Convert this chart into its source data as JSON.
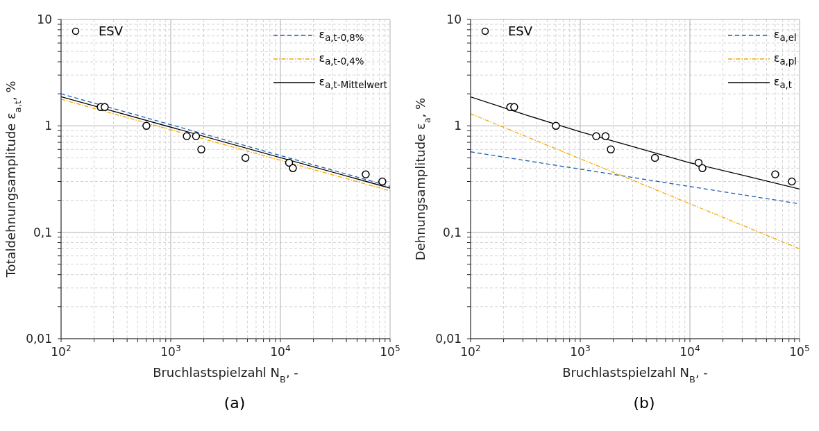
{
  "chart_data": [
    {
      "type": "line",
      "xlabel": "Bruchlastspielzahl N$_{B}$, -",
      "ylabel": "Totaldehnungsamplitude ε$_{a,t}$, %",
      "annotations": [
        "(a)"
      ],
      "log": "xy",
      "grid": true,
      "legend": "top right",
      "xlim": [
        100,
        100000
      ],
      "ylim": [
        0.01,
        10
      ],
      "xticks": [
        {
          "value": 100,
          "label": "10$^{2}$"
        },
        {
          "value": 200,
          "label": null
        },
        {
          "value": 300,
          "label": null
        },
        {
          "value": 400,
          "label": null
        },
        {
          "value": 500,
          "label": null
        },
        {
          "value": 600,
          "label": null
        },
        {
          "value": 700,
          "label": null
        },
        {
          "value": 800,
          "label": null
        },
        {
          "value": 900,
          "label": null
        },
        {
          "value": 1000,
          "label": "10$^{3}$"
        },
        {
          "value": 2000,
          "label": null
        },
        {
          "value": 3000,
          "label": null
        },
        {
          "value": 4000,
          "label": null
        },
        {
          "value": 5000,
          "label": null
        },
        {
          "value": 6000,
          "label": null
        },
        {
          "value": 7000,
          "label": null
        },
        {
          "value": 8000,
          "label": null
        },
        {
          "value": 9000,
          "label": null
        },
        {
          "value": 10000,
          "label": "10$^{4}$"
        },
        {
          "value": 20000,
          "label": null
        },
        {
          "value": 30000,
          "label": null
        },
        {
          "value": 40000,
          "label": null
        },
        {
          "value": 50000,
          "label": null
        },
        {
          "value": 60000,
          "label": null
        },
        {
          "value": 70000,
          "label": null
        },
        {
          "value": 80000,
          "label": null
        },
        {
          "value": 90000,
          "label": null
        },
        {
          "value": 100000,
          "label": "10$^{5}$"
        }
      ],
      "yticks": [
        {
          "value": 0.01,
          "label": "0,01"
        },
        {
          "value": 0.02,
          "label": null
        },
        {
          "value": 0.03,
          "label": null
        },
        {
          "value": 0.04,
          "label": null
        },
        {
          "value": 0.05,
          "label": null
        },
        {
          "value": 0.06,
          "label": null
        },
        {
          "value": 0.07,
          "label": null
        },
        {
          "value": 0.08,
          "label": null
        },
        {
          "value": 0.09,
          "label": null
        },
        {
          "value": 0.1,
          "label": "0,1"
        },
        {
          "value": 0.2,
          "label": null
        },
        {
          "value": 0.3,
          "label": null
        },
        {
          "value": 0.4,
          "label": null
        },
        {
          "value": 0.5,
          "label": null
        },
        {
          "value": 0.6,
          "label": null
        },
        {
          "value": 0.7,
          "label": null
        },
        {
          "value": 0.8,
          "label": null
        },
        {
          "value": 0.9,
          "label": null
        },
        {
          "value": 1,
          "label": "1"
        },
        {
          "value": 2,
          "label": null
        },
        {
          "value": 3,
          "label": null
        },
        {
          "value": 4,
          "label": null
        },
        {
          "value": 5,
          "label": null
        },
        {
          "value": 6,
          "label": null
        },
        {
          "value": 7,
          "label": null
        },
        {
          "value": 8,
          "label": null
        },
        {
          "value": 9,
          "label": null
        },
        {
          "value": 10,
          "label": "10"
        }
      ],
      "series": [
        {
          "name": "ESV",
          "type": "scatter",
          "marker": "circle",
          "color": "#000000",
          "x": [
            230,
            250,
            600,
            1400,
            1700,
            1900,
            4800,
            12000,
            13000,
            60000,
            85000
          ],
          "values": [
            1.5,
            1.5,
            1.0,
            0.8,
            0.8,
            0.6,
            0.5,
            0.45,
            0.4,
            0.35,
            0.3
          ]
        },
        {
          "name": "ε$_{a,t-0,8%}$",
          "type": "line",
          "line_style": "dashed",
          "color": "#1f5fb0",
          "x": [
            100,
            100000
          ],
          "values": [
            2.0,
            0.27
          ]
        },
        {
          "name": "ε$_{a,t-0,4%}$",
          "type": "line",
          "line_style": "dotted",
          "color": "#f5a800",
          "x": [
            100,
            100000
          ],
          "values": [
            1.78,
            0.245
          ]
        },
        {
          "name": "ε$_{a,t-Mittelwert}$",
          "type": "line",
          "line_style": "solid",
          "color": "#000000",
          "x": [
            100,
            100000
          ],
          "values": [
            1.88,
            0.26
          ]
        }
      ]
    },
    {
      "type": "line",
      "xlabel": "Bruchlastspielzahl N$_{B}$, -",
      "ylabel": "Dehnungsamplitude ε$_{a}$, %",
      "annotations": [
        "(b)"
      ],
      "log": "xy",
      "grid": true,
      "legend": "top right",
      "xlim": [
        100,
        100000
      ],
      "ylim": [
        0.01,
        10
      ],
      "xticks": [
        {
          "value": 100,
          "label": "10$^{2}$"
        },
        {
          "value": 200,
          "label": null
        },
        {
          "value": 300,
          "label": null
        },
        {
          "value": 400,
          "label": null
        },
        {
          "value": 500,
          "label": null
        },
        {
          "value": 600,
          "label": null
        },
        {
          "value": 700,
          "label": null
        },
        {
          "value": 800,
          "label": null
        },
        {
          "value": 900,
          "label": null
        },
        {
          "value": 1000,
          "label": "10$^{3}$"
        },
        {
          "value": 2000,
          "label": null
        },
        {
          "value": 3000,
          "label": null
        },
        {
          "value": 4000,
          "label": null
        },
        {
          "value": 5000,
          "label": null
        },
        {
          "value": 6000,
          "label": null
        },
        {
          "value": 7000,
          "label": null
        },
        {
          "value": 8000,
          "label": null
        },
        {
          "value": 9000,
          "label": null
        },
        {
          "value": 10000,
          "label": "10$^{4}$"
        },
        {
          "value": 20000,
          "label": null
        },
        {
          "value": 30000,
          "label": null
        },
        {
          "value": 40000,
          "label": null
        },
        {
          "value": 50000,
          "label": null
        },
        {
          "value": 60000,
          "label": null
        },
        {
          "value": 70000,
          "label": null
        },
        {
          "value": 80000,
          "label": null
        },
        {
          "value": 90000,
          "label": null
        },
        {
          "value": 100000,
          "label": "10$^{5}$"
        }
      ],
      "yticks": [
        {
          "value": 0.01,
          "label": "0,01"
        },
        {
          "value": 0.02,
          "label": null
        },
        {
          "value": 0.03,
          "label": null
        },
        {
          "value": 0.04,
          "label": null
        },
        {
          "value": 0.05,
          "label": null
        },
        {
          "value": 0.06,
          "label": null
        },
        {
          "value": 0.07,
          "label": null
        },
        {
          "value": 0.08,
          "label": null
        },
        {
          "value": 0.09,
          "label": null
        },
        {
          "value": 0.1,
          "label": "0,1"
        },
        {
          "value": 0.2,
          "label": null
        },
        {
          "value": 0.3,
          "label": null
        },
        {
          "value": 0.4,
          "label": null
        },
        {
          "value": 0.5,
          "label": null
        },
        {
          "value": 0.6,
          "label": null
        },
        {
          "value": 0.7,
          "label": null
        },
        {
          "value": 0.8,
          "label": null
        },
        {
          "value": 0.9,
          "label": null
        },
        {
          "value": 1,
          "label": "1"
        },
        {
          "value": 2,
          "label": null
        },
        {
          "value": 3,
          "label": null
        },
        {
          "value": 4,
          "label": null
        },
        {
          "value": 5,
          "label": null
        },
        {
          "value": 6,
          "label": null
        },
        {
          "value": 7,
          "label": null
        },
        {
          "value": 8,
          "label": null
        },
        {
          "value": 9,
          "label": null
        },
        {
          "value": 10,
          "label": "10"
        }
      ],
      "series": [
        {
          "name": "ESV",
          "type": "scatter",
          "marker": "circle",
          "color": "#000000",
          "x": [
            230,
            250,
            600,
            1400,
            1700,
            1900,
            4800,
            12000,
            13000,
            60000,
            85000
          ],
          "values": [
            1.5,
            1.5,
            1.0,
            0.8,
            0.8,
            0.6,
            0.5,
            0.45,
            0.4,
            0.35,
            0.3
          ]
        },
        {
          "name": "ε$_{a,el}$",
          "type": "line",
          "line_style": "dashed",
          "color": "#1f5fb0",
          "x": [
            100,
            100000
          ],
          "values": [
            0.57,
            0.185
          ]
        },
        {
          "name": "ε$_{a,pl}$",
          "type": "line",
          "line_style": "dotted",
          "color": "#f5a800",
          "x": [
            100,
            100000
          ],
          "values": [
            1.3,
            0.07
          ]
        },
        {
          "name": "ε$_{a,t}$",
          "type": "line",
          "line_style": "solid",
          "color": "#000000",
          "x": [
            100,
            316,
            1000,
            3162,
            10000,
            31623,
            100000
          ],
          "values": [
            1.87,
            1.27,
            0.88,
            0.63,
            0.45,
            0.34,
            0.255
          ]
        }
      ]
    }
  ]
}
